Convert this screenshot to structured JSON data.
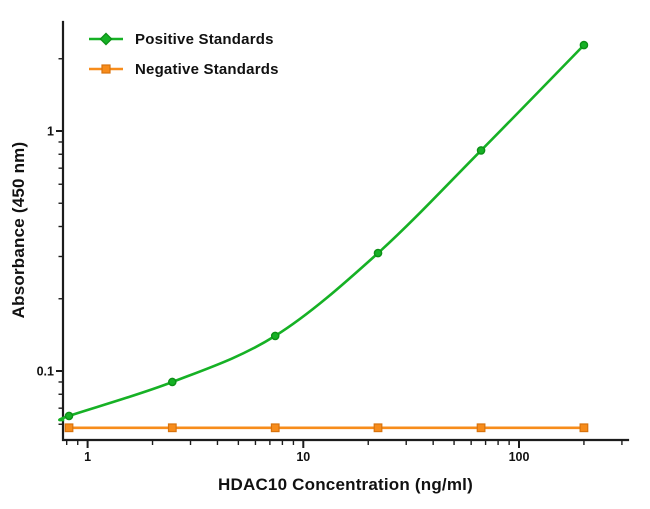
{
  "colors": {
    "positive_series": "#16b125",
    "positive_series_dark": "#0c8f16",
    "negative_series": "#f78c1b",
    "negative_series_dark": "#d8730e",
    "axis": "#1c1c1c",
    "text": "#111111",
    "background": "#ffffff"
  },
  "chart_data": {
    "type": "line",
    "x_scale": "log",
    "y_scale": "log",
    "xlabel": "HDAC10 Concentration (ng/ml)",
    "ylabel": "Absorbance (450 nm)",
    "x": [
      0.82,
      2.47,
      7.41,
      22.2,
      66.7,
      200
    ],
    "series": [
      {
        "name": "Positive Standards",
        "marker": "circle",
        "color_key": "positive_series",
        "values": [
          0.065,
          0.09,
          0.14,
          0.31,
          0.83,
          2.28
        ]
      },
      {
        "name": "Negative Standards",
        "marker": "square",
        "color_key": "negative_series",
        "values": [
          0.058,
          0.058,
          0.058,
          0.058,
          0.058,
          0.058
        ]
      }
    ],
    "x_ticks_major": [
      1,
      10,
      100
    ],
    "x_ticks_minor": [
      0.8,
      0.9,
      2,
      3,
      4,
      5,
      6,
      7,
      8,
      9,
      20,
      30,
      40,
      50,
      60,
      70,
      80,
      90,
      200,
      300
    ],
    "y_ticks_major": [
      0.1,
      1
    ],
    "y_ticks_minor": [
      0.06,
      0.07,
      0.08,
      0.09,
      0.2,
      0.3,
      0.4,
      0.5,
      0.6,
      0.7,
      0.8,
      0.9,
      2
    ],
    "xlim": [
      0.77,
      310
    ],
    "ylim": [
      0.052,
      2.85
    ],
    "legend_position": "top-left",
    "grid": false
  }
}
